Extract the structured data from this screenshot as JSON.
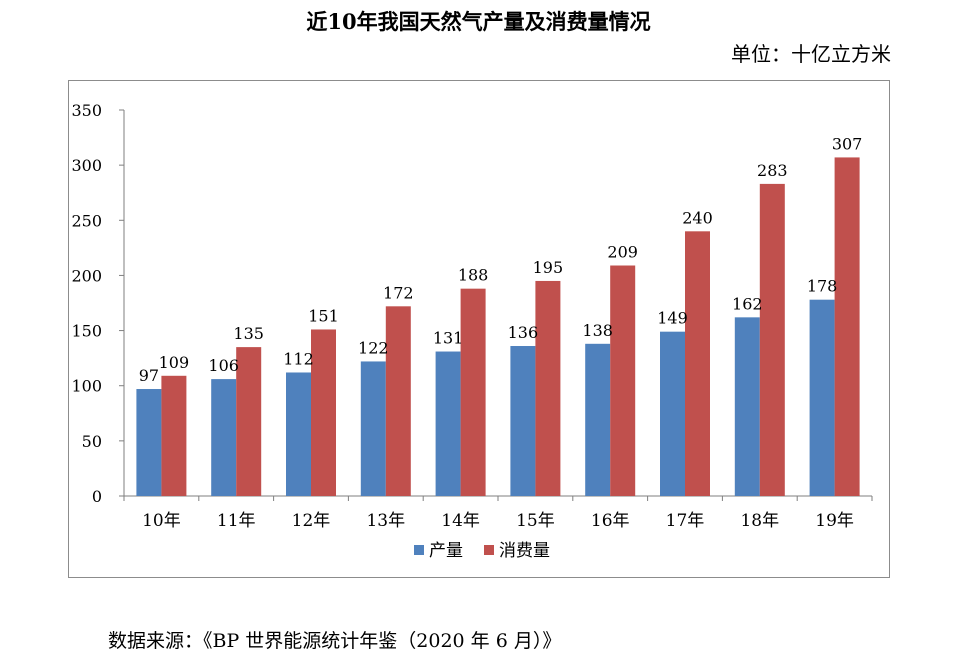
{
  "title": "近10年我国天然气产量及消费量情况",
  "unit_label": "单位：十亿立方米",
  "source": "数据来源：《BP 世界能源统计年鉴（2020 年 6 月）》",
  "colors": {
    "production": "#4f81bd",
    "consumption": "#c0504d"
  },
  "chart_data": {
    "type": "bar",
    "title": "近10年我国天然气产量及消费量情况",
    "categories": [
      "10年",
      "11年",
      "12年",
      "13年",
      "14年",
      "15年",
      "16年",
      "17年",
      "18年",
      "19年"
    ],
    "series": [
      {
        "name": "产量",
        "values": [
          97,
          106,
          112,
          122,
          131,
          136,
          138,
          149,
          162,
          178
        ]
      },
      {
        "name": "消费量",
        "values": [
          109,
          135,
          151,
          172,
          188,
          195,
          209,
          240,
          283,
          307
        ]
      }
    ],
    "ylim": [
      0,
      350
    ],
    "yticks": [
      0,
      50,
      100,
      150,
      200,
      250,
      300,
      350
    ],
    "legend": "bottom",
    "grid": false
  }
}
